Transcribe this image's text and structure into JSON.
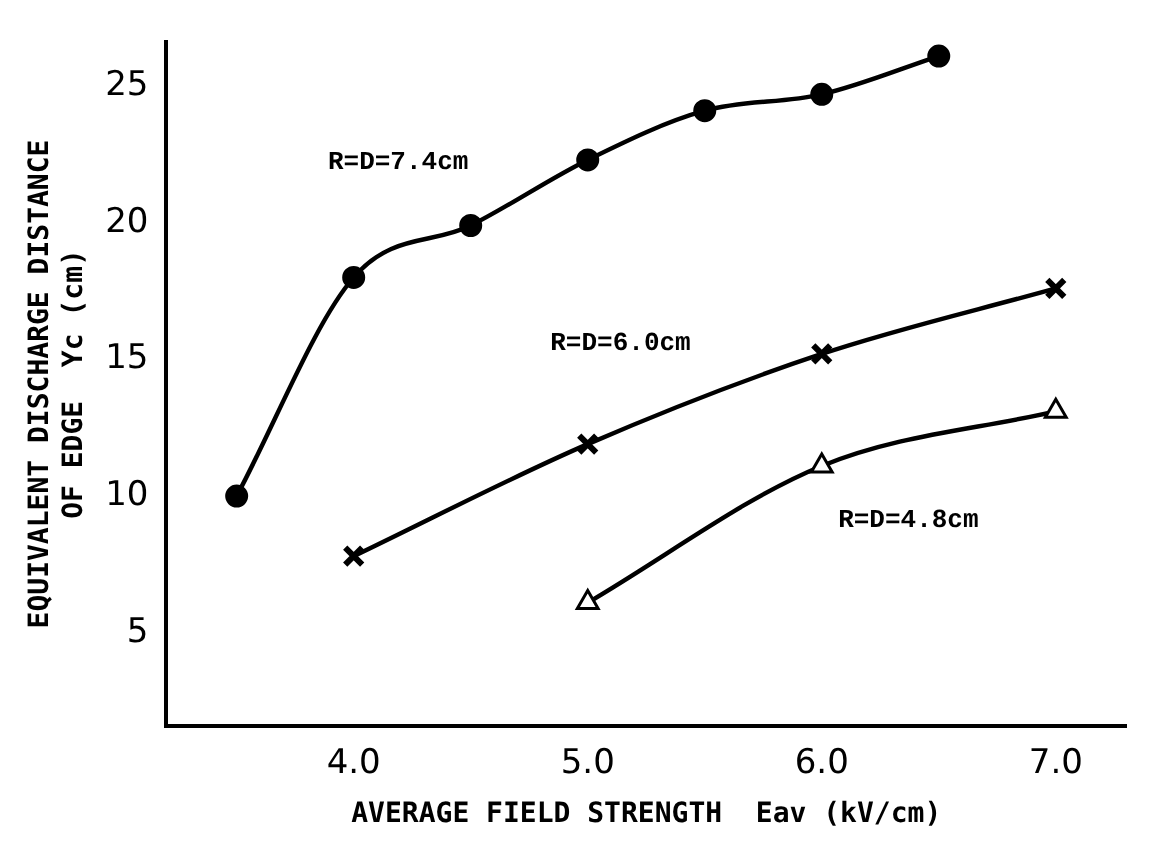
{
  "chart_data": {
    "type": "line",
    "xlabel": "AVERAGE FIELD STRENGTH  Eav (kV/cm)",
    "ylabel": "EQUIVALENT DISCHARGE DISTANCE\nOF EDGE  Yc (cm)",
    "xlim": [
      3.2,
      7.3
    ],
    "xticks": [
      {
        "value": 4,
        "label": "4.0"
      },
      {
        "value": 5,
        "label": "5.0"
      },
      {
        "value": 6,
        "label": "6.0"
      },
      {
        "value": 7,
        "label": "7.0"
      }
    ],
    "ylim": [
      1.6,
      26.6
    ],
    "yticks": [
      5,
      10,
      15,
      20,
      25
    ],
    "grid": false,
    "legend": false,
    "series": [
      {
        "name": "R=D=7.4cm",
        "color": "#000000",
        "marker": "circle",
        "x": [
          3.5,
          4.0,
          4.5,
          5.0,
          5.5,
          6.0,
          6.5
        ],
        "values": [
          10,
          18,
          19.9,
          22.3,
          24.1,
          24.7,
          26.1
        ]
      },
      {
        "name": "R=D=6.0cm",
        "color": "#000000",
        "marker": "cross",
        "x": [
          4.0,
          5.0,
          6.0,
          7.0
        ],
        "values": [
          7.8,
          11.9,
          15.2,
          17.6
        ]
      },
      {
        "name": "R=D=4.8cm",
        "color": "#000000",
        "marker": "triangle",
        "x": [
          5.0,
          6.0,
          7.0
        ],
        "values": [
          6.1,
          11.1,
          13.1
        ]
      }
    ]
  }
}
